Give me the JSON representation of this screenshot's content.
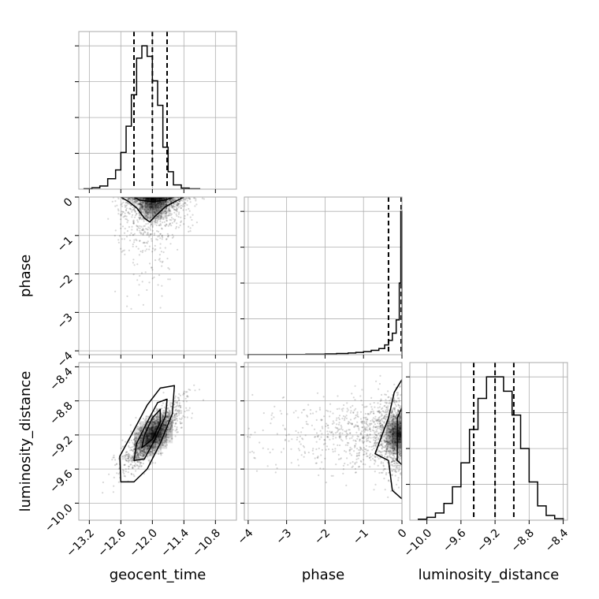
{
  "chart_data": {
    "type": "corner",
    "parameters": [
      "geocent_time",
      "phase",
      "luminosity_distance"
    ],
    "axis_labels": {
      "geocent_time": "geocent_time",
      "phase": "phase",
      "luminosity_distance": "luminosity_distance"
    },
    "grid": true,
    "style": {
      "line_color": "#000000",
      "scatter_color": "#000000",
      "grid_color": "#b0b0b0",
      "panel_border": "#aaaaaa"
    },
    "ranges": {
      "geocent_time": [
        -13.4,
        -10.4
      ],
      "phase": [
        -4.1,
        0
      ],
      "luminosity_distance": [
        -10.2,
        -8.35
      ]
    },
    "ticks": {
      "geocent_time": {
        "values": [
          -13.2,
          -12.6,
          -12.0,
          -11.4,
          -10.8
        ],
        "labels": [
          "−13.2",
          "−12.6",
          "−12.0",
          "−11.4",
          "−10.8"
        ]
      },
      "phase": {
        "values": [
          -4,
          -3,
          -2,
          -1,
          0
        ],
        "labels": [
          "−4",
          "−3",
          "−2",
          "−1",
          "0"
        ]
      },
      "luminosity_distance": {
        "values": [
          -10.0,
          -9.6,
          -9.2,
          -8.8,
          -8.4
        ],
        "labels": [
          "−10.0",
          "−9.6",
          "−9.2",
          "−8.8",
          "−8.4"
        ]
      }
    },
    "histograms": {
      "geocent_time": {
        "bin_edges": [
          -13.3,
          -13.15,
          -13.0,
          -12.85,
          -12.7,
          -12.6,
          -12.5,
          -12.4,
          -12.3,
          -12.2,
          -12.1,
          -12.0,
          -11.9,
          -11.8,
          -11.7,
          -11.6,
          -11.45,
          -11.3,
          -11.1
        ],
        "counts": [
          1,
          4,
          9,
          30,
          55,
          105,
          180,
          270,
          375,
          410,
          380,
          310,
          240,
          120,
          50,
          12,
          3,
          1
        ],
        "quantiles": [
          -12.35,
          -12.0,
          -11.72
        ]
      },
      "phase": {
        "bin_edges": [
          -4.0,
          -3.0,
          -2.5,
          -2.0,
          -1.7,
          -1.4,
          -1.2,
          -1.0,
          -0.8,
          -0.6,
          -0.45,
          -0.35,
          -0.25,
          -0.15,
          -0.07,
          -0.03,
          0
        ],
        "counts": [
          1,
          2,
          5,
          8,
          12,
          16,
          22,
          30,
          42,
          60,
          95,
          140,
          210,
          340,
          700,
          1400
        ],
        "quantiles": [
          -0.35,
          -0.02,
          0
        ]
      },
      "luminosity_distance": {
        "bin_edges": [
          -10.1,
          -10.0,
          -9.9,
          -9.8,
          -9.7,
          -9.6,
          -9.5,
          -9.4,
          -9.3,
          -9.2,
          -9.1,
          -9.0,
          -8.9,
          -8.8,
          -8.7,
          -8.6,
          -8.5,
          -8.4
        ],
        "counts": [
          2,
          6,
          15,
          35,
          70,
          120,
          190,
          255,
          300,
          300,
          270,
          220,
          150,
          80,
          30,
          10,
          3
        ],
        "quantiles": [
          -9.45,
          -9.2,
          -8.98
        ]
      }
    },
    "pairs": [
      {
        "x": "geocent_time",
        "y": "phase",
        "center": [
          -11.98,
          -0.08
        ],
        "spread": [
          0.3,
          0.35
        ],
        "corr": 0.2,
        "y_max": 0,
        "contours": [
          [
            [
              -12.6,
              0
            ],
            [
              -12.45,
              -0.12
            ],
            [
              -12.3,
              -0.28
            ],
            [
              -12.15,
              -0.55
            ],
            [
              -12.05,
              -0.65
            ],
            [
              -11.95,
              -0.5
            ],
            [
              -11.75,
              -0.25
            ],
            [
              -11.6,
              -0.14
            ],
            [
              -11.4,
              0
            ]
          ],
          [
            [
              -12.35,
              0
            ],
            [
              -12.25,
              -0.08
            ],
            [
              -12.0,
              -0.12
            ],
            [
              -11.75,
              -0.08
            ],
            [
              -11.6,
              0
            ]
          ]
        ]
      },
      {
        "x": "geocent_time",
        "y": "luminosity_distance",
        "center": [
          -11.98,
          -9.2
        ],
        "spread": [
          0.28,
          0.2
        ],
        "corr": 0.82,
        "y_max": null,
        "contours": [
          [
            [
              -12.6,
              -9.75
            ],
            [
              -12.62,
              -9.45
            ],
            [
              -12.4,
              -9.2
            ],
            [
              -12.1,
              -8.85
            ],
            [
              -11.85,
              -8.65
            ],
            [
              -11.58,
              -8.62
            ],
            [
              -11.62,
              -8.95
            ],
            [
              -11.85,
              -9.3
            ],
            [
              -12.1,
              -9.6
            ],
            [
              -12.35,
              -9.75
            ]
          ],
          [
            [
              -12.35,
              -9.5
            ],
            [
              -12.3,
              -9.3
            ],
            [
              -12.1,
              -9.05
            ],
            [
              -11.9,
              -8.82
            ],
            [
              -11.72,
              -8.78
            ],
            [
              -11.75,
              -8.98
            ],
            [
              -11.95,
              -9.25
            ],
            [
              -12.15,
              -9.48
            ]
          ],
          [
            [
              -12.2,
              -9.35
            ],
            [
              -12.15,
              -9.2
            ],
            [
              -12.0,
              -9.0
            ],
            [
              -11.85,
              -8.9
            ],
            [
              -11.85,
              -9.05
            ],
            [
              -12.0,
              -9.25
            ]
          ]
        ]
      },
      {
        "x": "phase",
        "y": "luminosity_distance",
        "center": [
          -0.05,
          -9.2
        ],
        "spread": [
          0.35,
          0.22
        ],
        "corr": 0.0,
        "y_max": null,
        "x_max": 0,
        "contours": [
          [
            [
              0,
              -8.55
            ],
            [
              -0.2,
              -8.7
            ],
            [
              -0.35,
              -9.0
            ],
            [
              -0.7,
              -9.42
            ],
            [
              -0.35,
              -9.5
            ],
            [
              -0.25,
              -9.85
            ],
            [
              0,
              -9.95
            ]
          ],
          [
            [
              0,
              -8.88
            ],
            [
              -0.12,
              -9.0
            ],
            [
              -0.12,
              -9.5
            ],
            [
              0,
              -9.55
            ]
          ]
        ]
      }
    ]
  }
}
